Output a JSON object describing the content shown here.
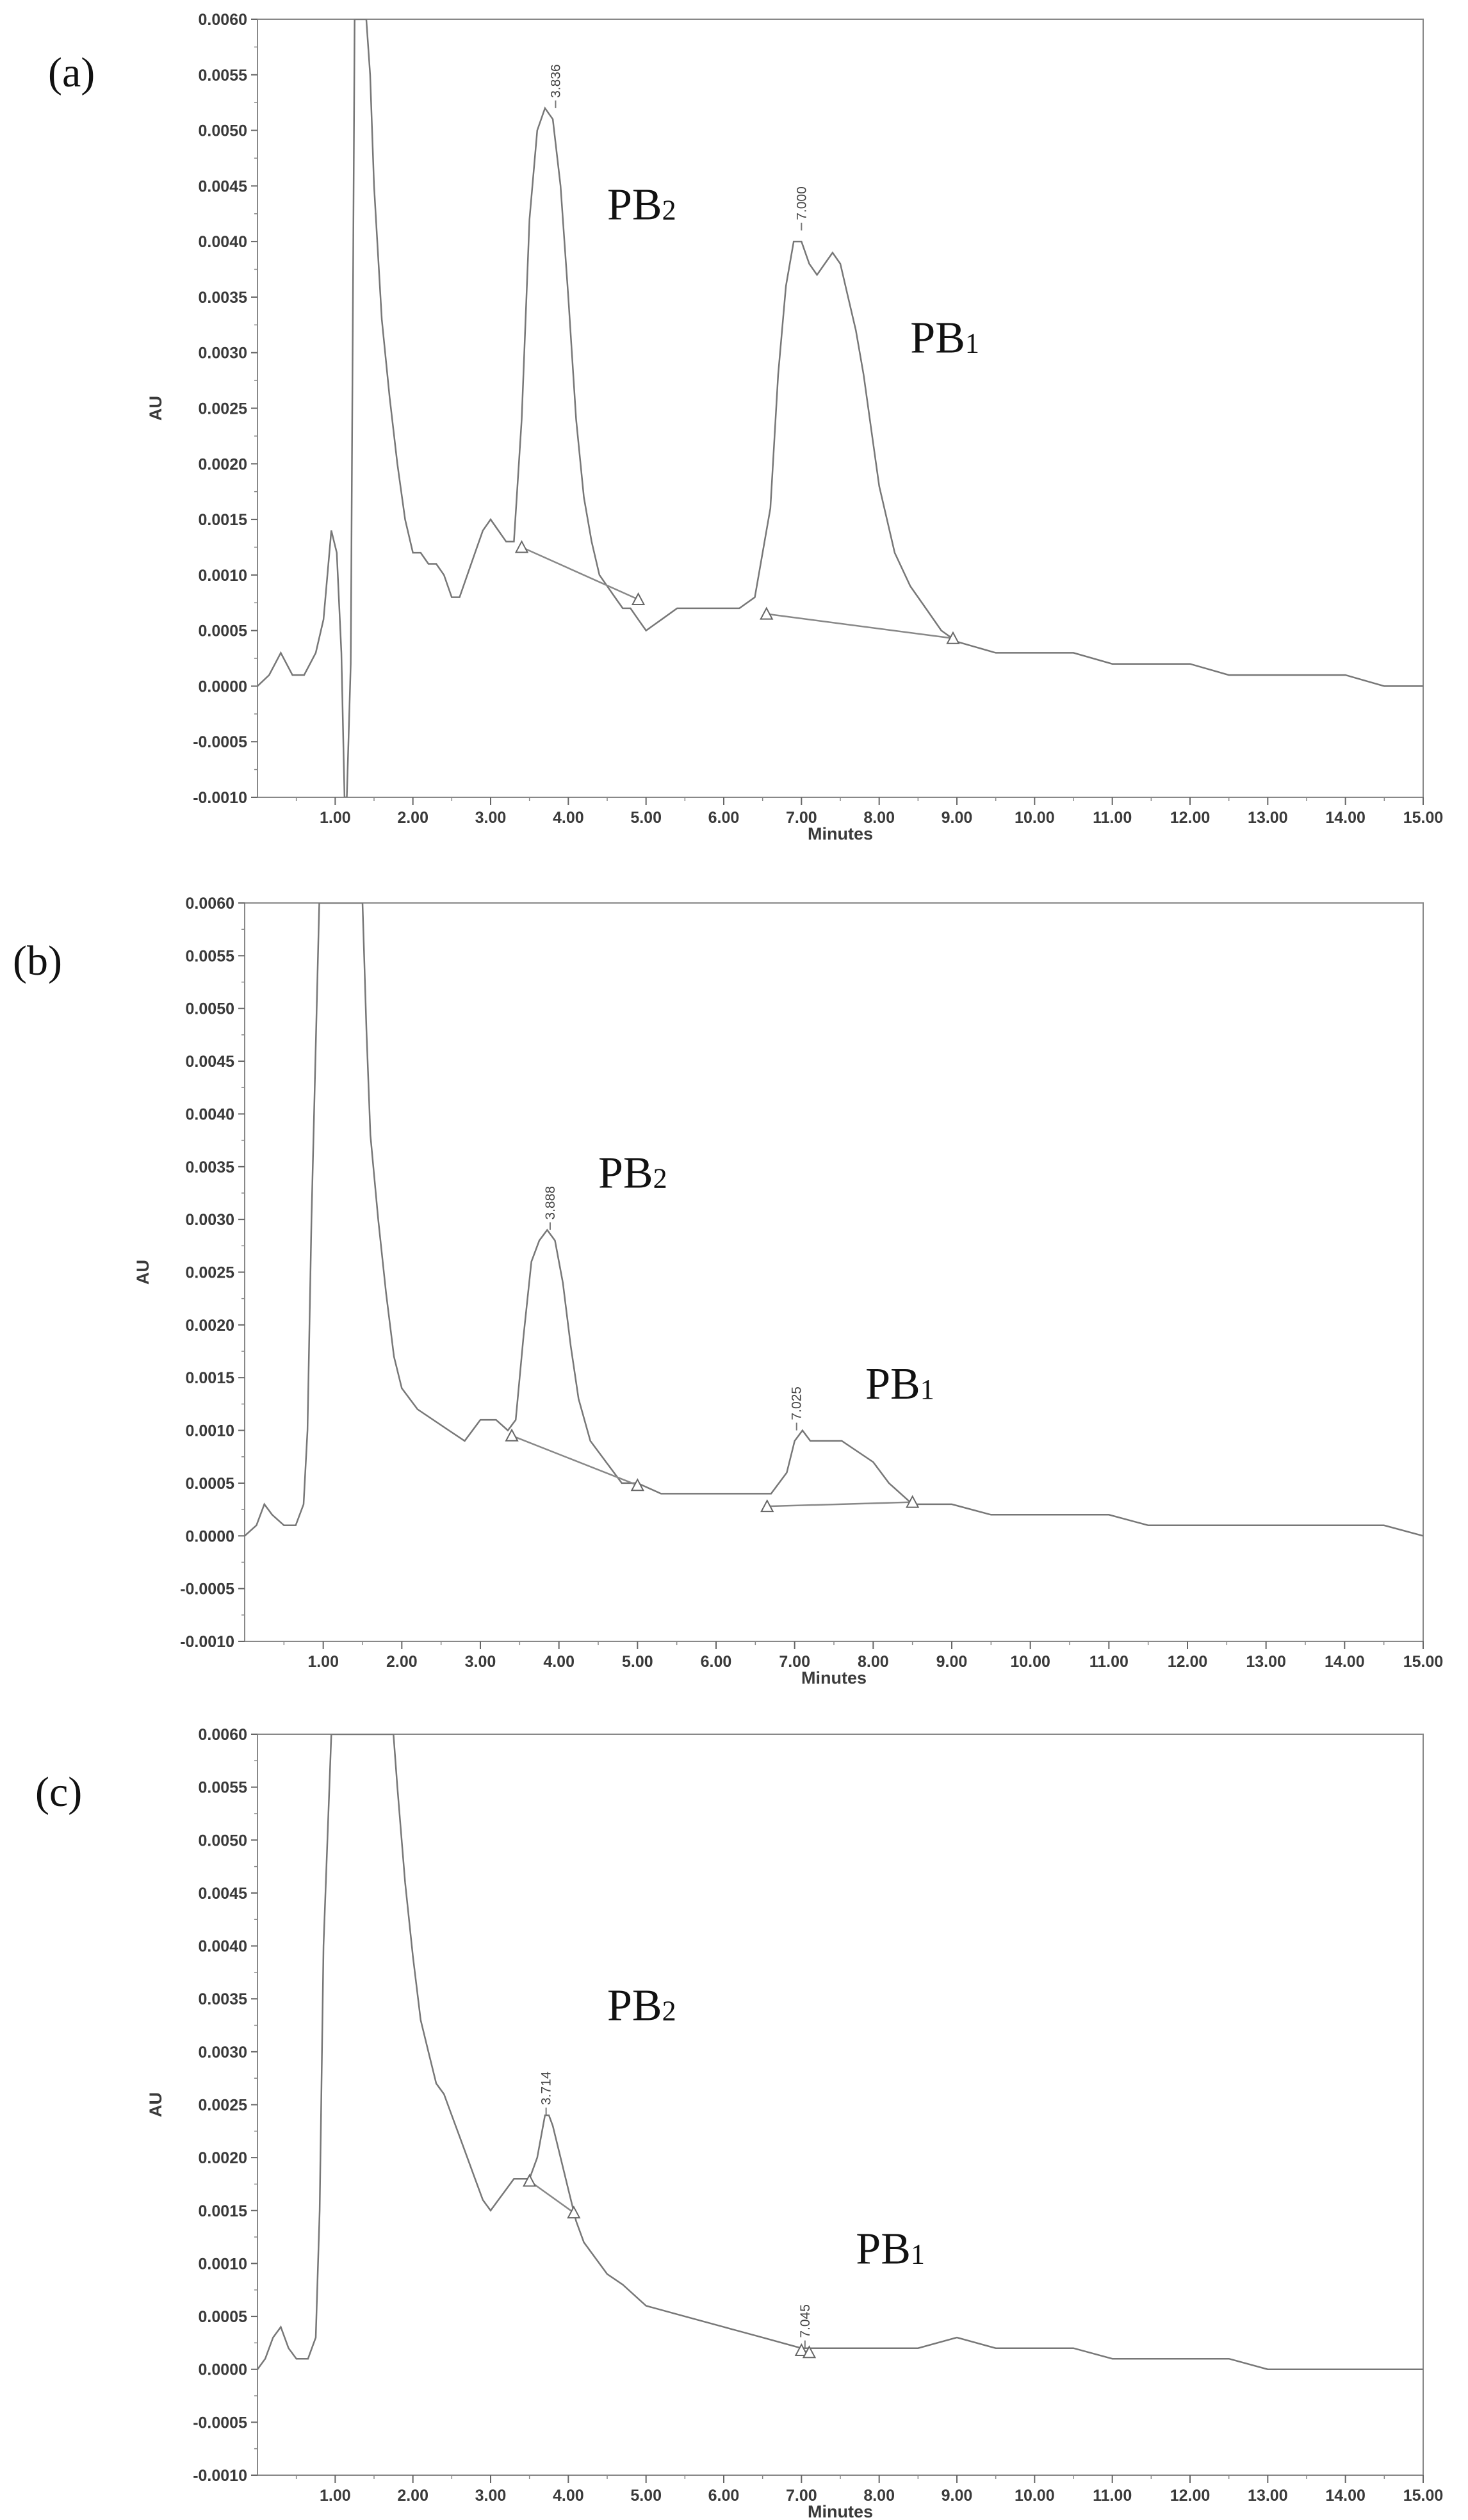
{
  "chart_data": [
    {
      "type": "line",
      "panel_label": "(a)",
      "xlabel": "Minutes",
      "ylabel": "AU",
      "xlim": [
        0,
        15
      ],
      "ylim": [
        -0.001,
        0.006
      ],
      "x_ticks": [
        "1.00",
        "2.00",
        "3.00",
        "4.00",
        "5.00",
        "6.00",
        "7.00",
        "8.00",
        "9.00",
        "10.00",
        "11.00",
        "12.00",
        "13.00",
        "14.00",
        "15.00"
      ],
      "y_ticks": [
        "0.0060",
        "0.0055",
        "0.0050",
        "0.0045",
        "0.0040",
        "0.0035",
        "0.0030",
        "0.0025",
        "0.0020",
        "0.0015",
        "0.0010",
        "0.0005",
        "0.0000",
        "-0.0005",
        "-0.0010"
      ],
      "grid": false,
      "series": [
        {
          "x": [
            0.0,
            0.15,
            0.3,
            0.45,
            0.6,
            0.75,
            0.85,
            0.95,
            1.02,
            1.08,
            1.12,
            1.15,
            1.2,
            1.25,
            1.3,
            1.35,
            1.4,
            1.45,
            1.5,
            1.6,
            1.7,
            1.8,
            1.9,
            2.0,
            2.1,
            2.2,
            2.3,
            2.4,
            2.5,
            2.6,
            2.7,
            2.8,
            2.9,
            3.0,
            3.1,
            3.2,
            3.3,
            3.4,
            3.5,
            3.6,
            3.7,
            3.8,
            3.9,
            4.0,
            4.1,
            4.2,
            4.3,
            4.4,
            4.5,
            4.6,
            4.7,
            4.8,
            4.9,
            5.0,
            5.2,
            5.4,
            5.6,
            5.8,
            6.0,
            6.2,
            6.4,
            6.6,
            6.7,
            6.8,
            6.9,
            7.0,
            7.1,
            7.2,
            7.3,
            7.4,
            7.5,
            7.6,
            7.7,
            7.8,
            7.9,
            8.0,
            8.2,
            8.4,
            8.6,
            8.8,
            9.0,
            9.5,
            10.0,
            10.5,
            11.0,
            11.5,
            12.0,
            12.5,
            13.0,
            13.5,
            14.0,
            14.5,
            15.0
          ],
          "y": [
            0.0,
            0.0001,
            0.0003,
            0.0001,
            0.0001,
            0.0003,
            0.0006,
            0.0014,
            0.0012,
            0.0003,
            -0.001,
            -0.001,
            0.0002,
            0.006,
            0.006,
            0.006,
            0.006,
            0.0055,
            0.0045,
            0.0033,
            0.0026,
            0.002,
            0.0015,
            0.0012,
            0.0012,
            0.0011,
            0.0011,
            0.001,
            0.0008,
            0.0008,
            0.001,
            0.0012,
            0.0014,
            0.0015,
            0.0014,
            0.0013,
            0.0013,
            0.0024,
            0.0042,
            0.005,
            0.0052,
            0.0051,
            0.0045,
            0.0035,
            0.0024,
            0.0017,
            0.0013,
            0.001,
            0.0009,
            0.0008,
            0.0007,
            0.0007,
            0.0006,
            0.0005,
            0.0006,
            0.0007,
            0.0007,
            0.0007,
            0.0007,
            0.0007,
            0.0008,
            0.0016,
            0.0028,
            0.0036,
            0.004,
            0.004,
            0.0038,
            0.0037,
            0.0038,
            0.0039,
            0.0038,
            0.0035,
            0.0032,
            0.0028,
            0.0023,
            0.0018,
            0.0012,
            0.0009,
            0.0007,
            0.0005,
            0.0004,
            0.0003,
            0.0003,
            0.0003,
            0.0002,
            0.0002,
            0.0002,
            0.0001,
            0.0001,
            0.0001,
            0.0001,
            0.0,
            0.0
          ]
        }
      ],
      "baselines": [
        {
          "x": [
            3.4,
            4.9
          ],
          "y": [
            0.00125,
            0.00078
          ]
        },
        {
          "x": [
            6.55,
            8.95
          ],
          "y": [
            0.00065,
            0.00043
          ]
        }
      ],
      "peak_labels": [
        {
          "text": "3.836",
          "x": 3.836,
          "y": 0.0052
        },
        {
          "text": "7.000",
          "x": 7.0,
          "y": 0.0041
        }
      ],
      "annotations": [
        {
          "name": "PB",
          "sub": "2",
          "x": 4.5,
          "y": 0.0042
        },
        {
          "name": "PB",
          "sub": "1",
          "x": 8.4,
          "y": 0.003
        }
      ]
    },
    {
      "type": "line",
      "panel_label": "(b)",
      "xlabel": "Minutes",
      "ylabel": "AU",
      "xlim": [
        0,
        15
      ],
      "ylim": [
        -0.001,
        0.006
      ],
      "x_ticks": [
        "1.00",
        "2.00",
        "3.00",
        "4.00",
        "5.00",
        "6.00",
        "7.00",
        "8.00",
        "9.00",
        "10.00",
        "11.00",
        "12.00",
        "13.00",
        "14.00",
        "15.00"
      ],
      "y_ticks": [
        "0.0060",
        "0.0055",
        "0.0050",
        "0.0045",
        "0.0040",
        "0.0035",
        "0.0030",
        "0.0025",
        "0.0020",
        "0.0015",
        "0.0010",
        "0.0005",
        "0.0000",
        "-0.0005",
        "-0.0010"
      ],
      "grid": false,
      "series": [
        {
          "x": [
            0.0,
            0.15,
            0.25,
            0.35,
            0.5,
            0.65,
            0.75,
            0.8,
            0.85,
            0.95,
            1.0,
            1.2,
            1.4,
            1.5,
            1.55,
            1.6,
            1.7,
            1.8,
            1.9,
            2.0,
            2.2,
            2.4,
            2.6,
            2.8,
            3.0,
            3.2,
            3.35,
            3.45,
            3.55,
            3.65,
            3.75,
            3.85,
            3.95,
            4.05,
            4.15,
            4.25,
            4.4,
            4.6,
            4.8,
            5.0,
            5.3,
            5.6,
            6.0,
            6.4,
            6.7,
            6.9,
            7.0,
            7.1,
            7.2,
            7.4,
            7.6,
            7.8,
            8.0,
            8.2,
            8.5,
            9.0,
            9.5,
            10.0,
            10.5,
            11.0,
            11.5,
            12.0,
            12.5,
            13.0,
            13.5,
            14.0,
            14.5,
            15.0
          ],
          "y": [
            0.0,
            0.0001,
            0.0003,
            0.0002,
            0.0001,
            0.0001,
            0.0003,
            0.001,
            0.003,
            0.006,
            0.006,
            0.006,
            0.006,
            0.006,
            0.0048,
            0.0038,
            0.003,
            0.0023,
            0.0017,
            0.0014,
            0.0012,
            0.0011,
            0.001,
            0.0009,
            0.0011,
            0.0011,
            0.001,
            0.0011,
            0.0019,
            0.0026,
            0.0028,
            0.0029,
            0.0028,
            0.0024,
            0.0018,
            0.0013,
            0.0009,
            0.0007,
            0.0005,
            0.0005,
            0.0004,
            0.0004,
            0.0004,
            0.0004,
            0.0004,
            0.0006,
            0.0009,
            0.001,
            0.0009,
            0.0009,
            0.0009,
            0.0008,
            0.0007,
            0.0005,
            0.0003,
            0.0003,
            0.0002,
            0.0002,
            0.0002,
            0.0002,
            0.0001,
            0.0001,
            0.0001,
            0.0001,
            0.0001,
            0.0001,
            0.0001,
            0.0
          ]
        }
      ],
      "baselines": [
        {
          "x": [
            3.4,
            5.0
          ],
          "y": [
            0.00095,
            0.00048
          ]
        },
        {
          "x": [
            6.65,
            8.5
          ],
          "y": [
            0.00028,
            0.00032
          ]
        }
      ],
      "peak_labels": [
        {
          "text": "3.888",
          "x": 3.888,
          "y": 0.0029
        },
        {
          "text": "7.025",
          "x": 7.025,
          "y": 0.001
        }
      ],
      "annotations": [
        {
          "name": "PB",
          "sub": "2",
          "x": 4.5,
          "y": 0.0033
        },
        {
          "name": "PB",
          "sub": "1",
          "x": 7.9,
          "y": 0.0013
        }
      ]
    },
    {
      "type": "line",
      "panel_label": "(c)",
      "xlabel": "Minutes",
      "ylabel": "AU",
      "xlim": [
        0,
        15
      ],
      "ylim": [
        -0.001,
        0.006
      ],
      "x_ticks": [
        "1.00",
        "2.00",
        "3.00",
        "4.00",
        "5.00",
        "6.00",
        "7.00",
        "8.00",
        "9.00",
        "10.00",
        "11.00",
        "12.00",
        "13.00",
        "14.00",
        "15.00"
      ],
      "y_ticks": [
        "0.0060",
        "0.0055",
        "0.0050",
        "0.0045",
        "0.0040",
        "0.0035",
        "0.0030",
        "0.0025",
        "0.0020",
        "0.0015",
        "0.0010",
        "0.0005",
        "0.0000",
        "-0.0005",
        "-0.0010"
      ],
      "grid": false,
      "series": [
        {
          "x": [
            0.0,
            0.1,
            0.2,
            0.3,
            0.4,
            0.5,
            0.6,
            0.65,
            0.7,
            0.75,
            0.8,
            0.85,
            0.95,
            1.2,
            1.5,
            1.75,
            1.8,
            1.9,
            2.0,
            2.1,
            2.2,
            2.3,
            2.4,
            2.5,
            2.6,
            2.7,
            2.8,
            2.9,
            3.0,
            3.1,
            3.2,
            3.3,
            3.4,
            3.5,
            3.6,
            3.7,
            3.75,
            3.8,
            3.9,
            4.0,
            4.1,
            4.2,
            4.3,
            4.5,
            4.7,
            5.0,
            5.5,
            6.0,
            6.5,
            7.0,
            7.5,
            8.0,
            8.5,
            9.0,
            9.5,
            10.0,
            10.5,
            11.0,
            11.5,
            12.0,
            12.5,
            13.0,
            13.5,
            14.0,
            14.5,
            15.0
          ],
          "y": [
            0.0,
            0.0001,
            0.0003,
            0.0004,
            0.0002,
            0.0001,
            0.0001,
            0.0001,
            0.0002,
            0.0003,
            0.0015,
            0.004,
            0.006,
            0.006,
            0.006,
            0.006,
            0.0055,
            0.0046,
            0.0039,
            0.0033,
            0.003,
            0.0027,
            0.0026,
            0.0024,
            0.0022,
            0.002,
            0.0018,
            0.0016,
            0.0015,
            0.0016,
            0.0017,
            0.0018,
            0.0018,
            0.0018,
            0.002,
            0.0024,
            0.0024,
            0.0023,
            0.002,
            0.0017,
            0.0014,
            0.0012,
            0.0011,
            0.0009,
            0.0008,
            0.0006,
            0.0005,
            0.0004,
            0.0003,
            0.0002,
            0.0002,
            0.0002,
            0.0002,
            0.0003,
            0.0002,
            0.0002,
            0.0002,
            0.0001,
            0.0001,
            0.0001,
            0.0001,
            0.0,
            0.0,
            0.0,
            0.0,
            0.0
          ]
        }
      ],
      "baselines": [
        {
          "x": [
            3.5,
            4.07
          ],
          "y": [
            0.00178,
            0.00148
          ]
        },
        {
          "x": [
            7.0,
            7.1
          ],
          "y": [
            0.00018,
            0.00016
          ]
        }
      ],
      "peak_labels": [
        {
          "text": "3.714",
          "x": 3.714,
          "y": 0.0024
        },
        {
          "text": "7.045",
          "x": 7.045,
          "y": 0.0002
        }
      ],
      "annotations": [
        {
          "name": "PB",
          "sub": "2",
          "x": 4.5,
          "y": 0.0033
        },
        {
          "name": "PB",
          "sub": "1",
          "x": 7.7,
          "y": 0.001
        }
      ]
    }
  ]
}
